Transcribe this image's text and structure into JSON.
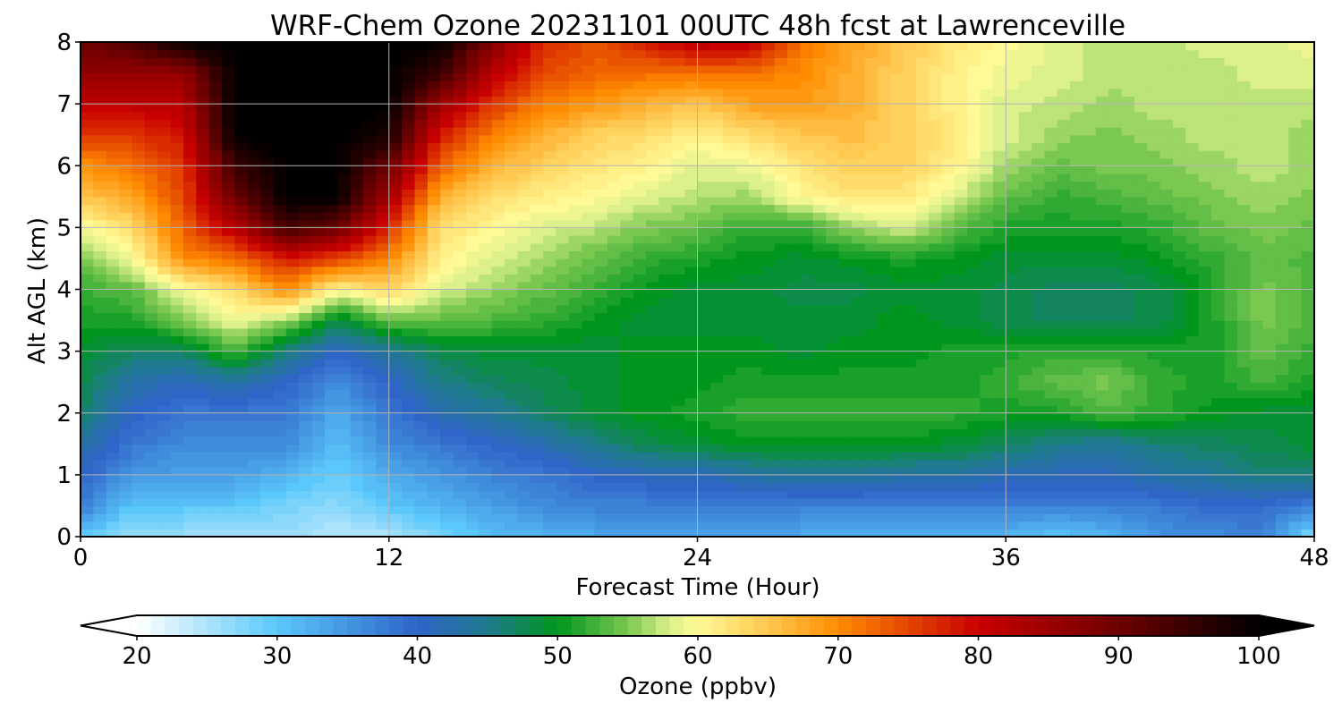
{
  "chart_data": {
    "type": "heatmap",
    "title": "WRF-Chem Ozone  20231101 00UTC 48h fcst at Lawrenceville",
    "xlabel": "Forecast Time (Hour)",
    "ylabel": "Alt AGL (km)",
    "xlim": [
      0,
      48
    ],
    "ylim": [
      0,
      8
    ],
    "x_ticks": [
      "0",
      "12",
      "24",
      "36",
      "48"
    ],
    "y_ticks": [
      "0",
      "1",
      "2",
      "3",
      "4",
      "5",
      "6",
      "7",
      "8"
    ],
    "grid": true,
    "x_hours": [
      0,
      2,
      4,
      6,
      8,
      10,
      12,
      14,
      16,
      18,
      20,
      22,
      24,
      26,
      28,
      30,
      32,
      34,
      36,
      38,
      40,
      42,
      44,
      46,
      48
    ],
    "z_km": [
      0,
      0.5,
      1,
      1.5,
      2,
      2.5,
      3,
      3.5,
      4,
      4.5,
      5,
      5.5,
      6,
      6.5,
      7,
      7.5,
      8
    ],
    "ozone_ppbv": [
      [
        29,
        26,
        26,
        25,
        26,
        24,
        25,
        28,
        31,
        32,
        33,
        33,
        33,
        34,
        33,
        32,
        32,
        33,
        32,
        30,
        32,
        35,
        36,
        37,
        27
      ],
      [
        38,
        30,
        30,
        30,
        28,
        27,
        30,
        32,
        34,
        36,
        37,
        37,
        37,
        37,
        37,
        37,
        37,
        37,
        37,
        37,
        37,
        38,
        39,
        39,
        37
      ],
      [
        40,
        35,
        34,
        34,
        32,
        29,
        33,
        35,
        37,
        38,
        40,
        41,
        41,
        43,
        44,
        44,
        43,
        43,
        42,
        41,
        41,
        43,
        44,
        46,
        46
      ],
      [
        43,
        38,
        36,
        36,
        36,
        31,
        36,
        38,
        40,
        42,
        45,
        48,
        49,
        50,
        50,
        50,
        50,
        49,
        47,
        45,
        44,
        46,
        47,
        48,
        49
      ],
      [
        47,
        40,
        38,
        38,
        38,
        33,
        38,
        42,
        44,
        47,
        49,
        50,
        51,
        52,
        52,
        52,
        52,
        52,
        51,
        51,
        53,
        52,
        50,
        49,
        49
      ],
      [
        48,
        43,
        41,
        43,
        40,
        36,
        40,
        45,
        47,
        48,
        49,
        50,
        50,
        51,
        51,
        51,
        51,
        51,
        52,
        54,
        55,
        52,
        51,
        53,
        51
      ],
      [
        49,
        47,
        47,
        53,
        46,
        40,
        44,
        48,
        49,
        49,
        49,
        50,
        50,
        50,
        49,
        50,
        50,
        51,
        51,
        52,
        52,
        51,
        51,
        54,
        52
      ],
      [
        51,
        51,
        55,
        59,
        56,
        48,
        54,
        54,
        53,
        52,
        50,
        49,
        49,
        49,
        49,
        49,
        50,
        49,
        48,
        47,
        47,
        48,
        51,
        55,
        53
      ],
      [
        52,
        54,
        59,
        63,
        70,
        60,
        64,
        58,
        56,
        54,
        52,
        50,
        49,
        49,
        48,
        48,
        49,
        49,
        48,
        47,
        47,
        48,
        51,
        55,
        53
      ],
      [
        55,
        59,
        70,
        72,
        78,
        75,
        70,
        61,
        58,
        56,
        54,
        52,
        51,
        50,
        49,
        50,
        51,
        50,
        49,
        49,
        49,
        50,
        52,
        54,
        53
      ],
      [
        59,
        63,
        73,
        82,
        94,
        90,
        77,
        63,
        60,
        58,
        57,
        55,
        54,
        52,
        52,
        56,
        58,
        54,
        51,
        51,
        51,
        52,
        54,
        55,
        54
      ],
      [
        65,
        68,
        75,
        90,
        100,
        100,
        84,
        67,
        63,
        61,
        60,
        58,
        57,
        56,
        60,
        62,
        62,
        58,
        54,
        52,
        53,
        54,
        55,
        56,
        55
      ],
      [
        69,
        72,
        76,
        95,
        100,
        100,
        90,
        73,
        67,
        64,
        62,
        61,
        58,
        59,
        62,
        64,
        64,
        61,
        56,
        54,
        55,
        55,
        56,
        57,
        56
      ],
      [
        76,
        76,
        79,
        100,
        100,
        100,
        98,
        78,
        71,
        67,
        64,
        63,
        61,
        63,
        65,
        66,
        64,
        62,
        58,
        56,
        55,
        56,
        57,
        57,
        56
      ],
      [
        81,
        81,
        82,
        100,
        100,
        100,
        100,
        85,
        76,
        71,
        69,
        67,
        65,
        68,
        69,
        67,
        64,
        61,
        58,
        57,
        56,
        57,
        57,
        57,
        57
      ],
      [
        86,
        86,
        86,
        100,
        100,
        100,
        100,
        95,
        82,
        75,
        73,
        72,
        72,
        72,
        70,
        67,
        64,
        61,
        59,
        58,
        57,
        57,
        57,
        58,
        58
      ],
      [
        90,
        93,
        100,
        100,
        100,
        100,
        100,
        100,
        88,
        77,
        74,
        78,
        82,
        81,
        72,
        68,
        65,
        62,
        60,
        58,
        57,
        57,
        58,
        58,
        59
      ]
    ],
    "colorbar": {
      "label": "Ozone  (ppbv)",
      "ticks": [
        "20",
        "30",
        "40",
        "50",
        "60",
        "70",
        "80",
        "90",
        "100"
      ],
      "range": [
        20,
        100
      ],
      "extend": "both",
      "colors": [
        {
          "v": 20,
          "c": "#ffffff"
        },
        {
          "v": 30,
          "c": "#5ac8fa"
        },
        {
          "v": 40,
          "c": "#2f64c8"
        },
        {
          "v": 45,
          "c": "#1e7a8c"
        },
        {
          "v": 50,
          "c": "#00961e"
        },
        {
          "v": 55,
          "c": "#7bc850"
        },
        {
          "v": 58,
          "c": "#dcf08c"
        },
        {
          "v": 60,
          "c": "#fffa96"
        },
        {
          "v": 65,
          "c": "#ffc850"
        },
        {
          "v": 70,
          "c": "#ff8c00"
        },
        {
          "v": 80,
          "c": "#c80000"
        },
        {
          "v": 90,
          "c": "#6e0000"
        },
        {
          "v": 100,
          "c": "#000000"
        }
      ]
    }
  }
}
